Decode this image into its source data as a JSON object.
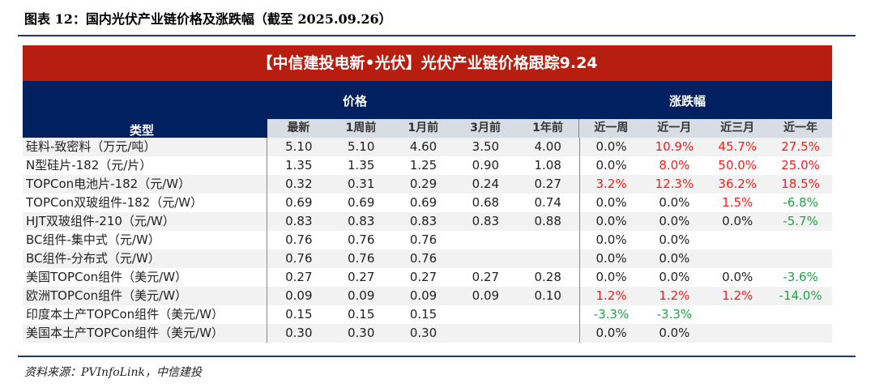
{
  "figure_title": "图表 12：国内光伏产业链价格及涨跌幅（截至 2025.09.26）",
  "banner": "【中信建投电新•光伏】光伏产业链价格跟踪9.24",
  "group_headers": {
    "type": "类型",
    "price": "价格",
    "change": "涨跌幅"
  },
  "columns": [
    "最新",
    "1周前",
    "1月前",
    "3月前",
    "1年前",
    "近一周",
    "近一月",
    "近三月",
    "近一年"
  ],
  "colors": {
    "banner": "#b81e10",
    "header": "#00205f",
    "up": "#ff1a1a",
    "down": "#1fa344"
  },
  "rows": [
    {
      "name": "硅料-致密料（万元/吨）",
      "v": [
        "5.10",
        "5.10",
        "4.60",
        "3.50",
        "4.00",
        "0.0%",
        "10.9%",
        "45.7%",
        "27.5%"
      ]
    },
    {
      "name": "N型硅片-182（元/片）",
      "v": [
        "1.35",
        "1.35",
        "1.25",
        "0.90",
        "1.08",
        "0.0%",
        "8.0%",
        "50.0%",
        "25.0%"
      ]
    },
    {
      "name": "TOPCon电池片-182（元/W）",
      "v": [
        "0.32",
        "0.31",
        "0.29",
        "0.24",
        "0.27",
        "3.2%",
        "12.3%",
        "36.2%",
        "18.5%"
      ]
    },
    {
      "name": "TOPCon双玻组件-182（元/W）",
      "v": [
        "0.69",
        "0.69",
        "0.69",
        "0.68",
        "0.74",
        "0.0%",
        "0.0%",
        "1.5%",
        "-6.8%"
      ]
    },
    {
      "name": "HJT双玻组件-210（元/W）",
      "v": [
        "0.83",
        "0.83",
        "0.83",
        "0.83",
        "0.88",
        "0.0%",
        "0.0%",
        "0.0%",
        "-5.7%"
      ]
    },
    {
      "name": "BC组件-集中式（元/W）",
      "v": [
        "0.76",
        "0.76",
        "0.76",
        "",
        "",
        "0.0%",
        "0.0%",
        "",
        ""
      ]
    },
    {
      "name": "BC组件-分布式（元/W）",
      "v": [
        "0.76",
        "0.76",
        "0.76",
        "",
        "",
        "0.0%",
        "0.0%",
        "",
        ""
      ]
    },
    {
      "name": "美国TOPCon组件（美元/W）",
      "v": [
        "0.27",
        "0.27",
        "0.27",
        "0.27",
        "0.28",
        "0.0%",
        "0.0%",
        "0.0%",
        "-3.6%"
      ]
    },
    {
      "name": "欧洲TOPCon组件（美元/W）",
      "v": [
        "0.09",
        "0.09",
        "0.09",
        "0.09",
        "0.10",
        "1.2%",
        "1.2%",
        "1.2%",
        "-14.0%"
      ]
    },
    {
      "name": "印度本土产TOPCon组件（美元/W）",
      "v": [
        "0.15",
        "0.15",
        "0.15",
        "",
        "",
        "-3.3%",
        "-3.3%",
        "",
        ""
      ]
    },
    {
      "name": "美国本土产TOPCon组件（美元/W）",
      "v": [
        "0.30",
        "0.30",
        "0.30",
        "",
        "",
        "0.0%",
        "0.0%",
        "",
        ""
      ]
    }
  ],
  "source": "资料来源：PVInfoLink，中信建投"
}
